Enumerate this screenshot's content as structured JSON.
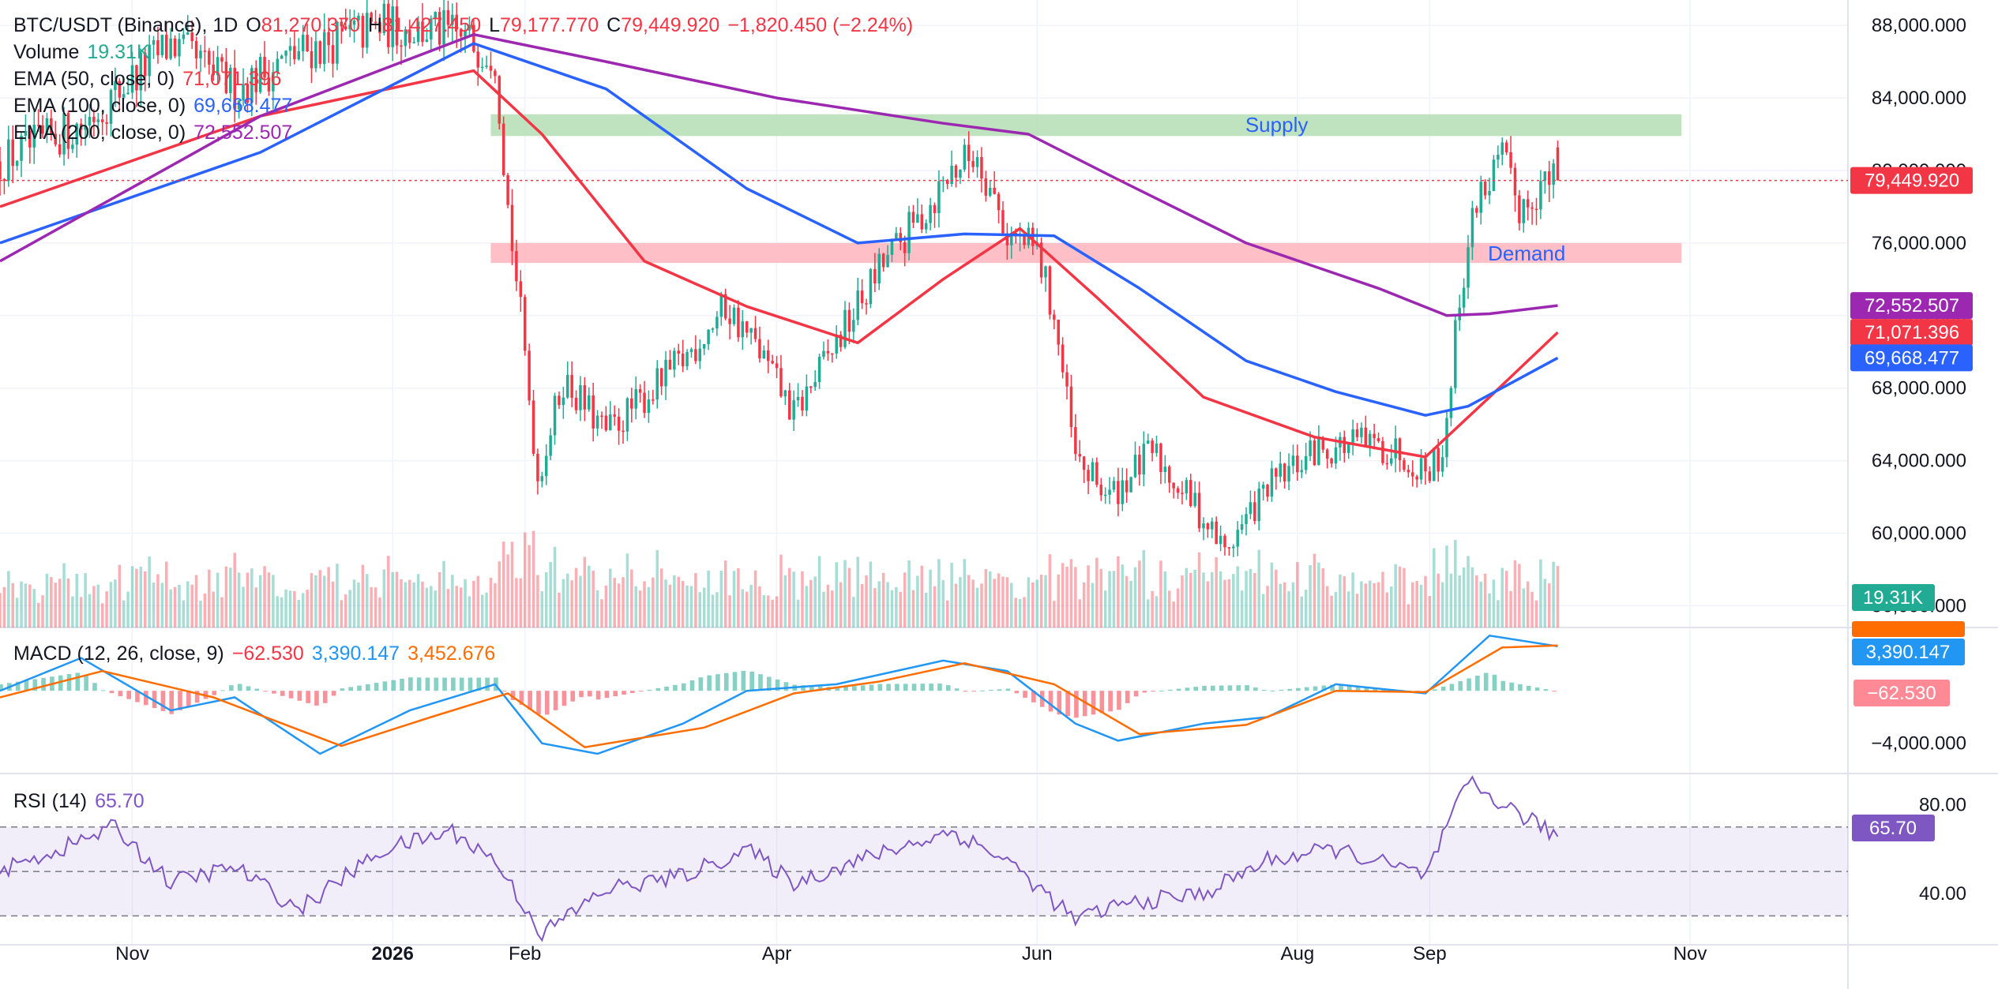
{
  "header": {
    "symbol": "BTC/USDT (Binance), 1D",
    "open_label": "O",
    "open": "81,270.370",
    "high_label": "H",
    "high": "81,427.450",
    "low_label": "L",
    "low": "79,177.770",
    "close_label": "C",
    "close": "79,449.920",
    "change": "−1,820.450 (−2.24%)"
  },
  "indicators": {
    "volume": {
      "label": "Volume",
      "value": "19.31K"
    },
    "ema50": {
      "label": "EMA (50, close, 0)",
      "value": "71,071.396"
    },
    "ema100": {
      "label": "EMA (100, close, 0)",
      "value": "69,668.477"
    },
    "ema200": {
      "label": "EMA (200, close, 0)",
      "value": "72,552.507"
    },
    "macd": {
      "label": "MACD (12, 26, close, 9)",
      "hist": "−62.530",
      "macd": "3,390.147",
      "signal": "3,452.676"
    },
    "rsi": {
      "label": "RSI (14)",
      "value": "65.70"
    }
  },
  "colors": {
    "up": "#22ab94",
    "down": "#f23645",
    "ema50": "#f23645",
    "ema100": "#2962ff",
    "ema200": "#9c27b0",
    "macd": "#2196f3",
    "signal": "#ff6d00",
    "rsi": "#7e57c2",
    "supply": "#b8e0b8",
    "demand": "#ffb8c0"
  },
  "chart_data": {
    "type": "candlestick",
    "title": "BTC/USDT (Binance), 1D",
    "x_ticks": [
      "Nov",
      "2026",
      "Feb",
      "Apr",
      "Jun",
      "Aug",
      "Sep",
      "Nov"
    ],
    "x_tick_months": [
      "2025-11",
      "2026-01",
      "2026-02",
      "2026-04",
      "2026-06",
      "2026-08",
      "2026-09",
      "2026-11"
    ],
    "y_ticks": [
      "88,000.000",
      "84,000.000",
      "80,000.000",
      "76,000.000",
      "72,000.000",
      "68,000.000",
      "64,000.000",
      "60,000.000",
      "56,000.000"
    ],
    "y_tick_values": [
      88000,
      84000,
      80000,
      76000,
      72000,
      68000,
      64000,
      60000,
      56000
    ],
    "price_range": [
      54800,
      89400
    ],
    "last_price": {
      "value": 79449.92,
      "label": "79,449.920"
    },
    "zones": [
      {
        "name": "Supply",
        "from": 81900,
        "to": 83100,
        "start": "2026-01-24",
        "end": "2026-10-30"
      },
      {
        "name": "Demand",
        "from": 74900,
        "to": 76000,
        "start": "2026-01-24",
        "end": "2026-10-30"
      }
    ],
    "price_path": [
      [
        "2025-10-01",
        80500
      ],
      [
        "2025-10-20",
        82500
      ],
      [
        "2025-11-10",
        87000
      ],
      [
        "2025-11-25",
        84500
      ],
      [
        "2025-12-10",
        86500
      ],
      [
        "2025-12-30",
        88000
      ],
      [
        "2026-01-15",
        87500
      ],
      [
        "2026-01-25",
        86500
      ],
      [
        "2026-01-28",
        78000
      ],
      [
        "2026-01-31",
        72000
      ],
      [
        "2026-02-04",
        63000
      ],
      [
        "2026-02-10",
        68500
      ],
      [
        "2026-02-20",
        65500
      ],
      [
        "2026-03-01",
        67500
      ],
      [
        "2026-03-10",
        69500
      ],
      [
        "2026-03-20",
        72500
      ],
      [
        "2026-03-28",
        70000
      ],
      [
        "2026-04-05",
        66500
      ],
      [
        "2026-04-15",
        70500
      ],
      [
        "2026-04-25",
        74500
      ],
      [
        "2026-05-05",
        77500
      ],
      [
        "2026-05-12",
        80000
      ],
      [
        "2026-05-18",
        81000
      ],
      [
        "2026-05-25",
        76500
      ],
      [
        "2026-06-01",
        75500
      ],
      [
        "2026-06-05",
        72000
      ],
      [
        "2026-06-10",
        64000
      ],
      [
        "2026-06-18",
        62000
      ],
      [
        "2026-06-28",
        64500
      ],
      [
        "2026-07-08",
        61500
      ],
      [
        "2026-07-15",
        59000
      ],
      [
        "2026-07-25",
        62500
      ],
      [
        "2026-08-05",
        64500
      ],
      [
        "2026-08-15",
        65000
      ],
      [
        "2026-08-25",
        64500
      ],
      [
        "2026-08-31",
        63500
      ],
      [
        "2026-09-04",
        64500
      ],
      [
        "2026-09-08",
        73000
      ],
      [
        "2026-09-12",
        78500
      ],
      [
        "2026-09-18",
        80500
      ],
      [
        "2026-09-22",
        78000
      ],
      [
        "2026-09-27",
        79200
      ],
      [
        "2026-10-01",
        79449.92
      ]
    ],
    "ema50_path": [
      [
        "2025-10-01",
        78000
      ],
      [
        "2025-12-01",
        83000
      ],
      [
        "2026-01-20",
        85500
      ],
      [
        "2026-02-05",
        82000
      ],
      [
        "2026-03-01",
        75000
      ],
      [
        "2026-03-25",
        72500
      ],
      [
        "2026-04-20",
        70500
      ],
      [
        "2026-05-10",
        74000
      ],
      [
        "2026-05-28",
        76800
      ],
      [
        "2026-06-15",
        73000
      ],
      [
        "2026-07-10",
        67500
      ],
      [
        "2026-08-05",
        65300
      ],
      [
        "2026-08-31",
        64200
      ],
      [
        "2026-09-15",
        67500
      ],
      [
        "2026-10-01",
        71071.396
      ]
    ],
    "ema100_path": [
      [
        "2025-10-01",
        76000
      ],
      [
        "2025-12-01",
        81000
      ],
      [
        "2026-01-20",
        87000
      ],
      [
        "2026-02-20",
        84500
      ],
      [
        "2026-03-25",
        79000
      ],
      [
        "2026-04-20",
        76000
      ],
      [
        "2026-05-15",
        76500
      ],
      [
        "2026-06-05",
        76400
      ],
      [
        "2026-06-25",
        73500
      ],
      [
        "2026-07-20",
        69500
      ],
      [
        "2026-08-10",
        67800
      ],
      [
        "2026-08-31",
        66500
      ],
      [
        "2026-09-10",
        67000
      ],
      [
        "2026-10-01",
        69668.477
      ]
    ],
    "ema200_path": [
      [
        "2025-10-01",
        75000
      ],
      [
        "2025-12-01",
        83000
      ],
      [
        "2026-01-20",
        87500
      ],
      [
        "2026-02-20",
        86000
      ],
      [
        "2026-04-01",
        84000
      ],
      [
        "2026-05-10",
        82600
      ],
      [
        "2026-05-30",
        82000
      ],
      [
        "2026-06-20",
        79500
      ],
      [
        "2026-07-20",
        76000
      ],
      [
        "2026-08-20",
        73500
      ],
      [
        "2026-09-05",
        72000
      ],
      [
        "2026-09-15",
        72100
      ],
      [
        "2026-10-01",
        72552.507
      ]
    ],
    "volume": {
      "last": "19.31K",
      "y_max": 60
    },
    "macd": {
      "y_ticks": [
        "−4,000.000"
      ],
      "y_tick_values": [
        -4000
      ],
      "range": [
        -6300,
        4700
      ],
      "last_macd": "3,390.147",
      "last_signal": "3,452.676",
      "last_hist": "−62.530",
      "macd_path": [
        [
          "2025-10-01",
          0
        ],
        [
          "2025-10-20",
          2500
        ],
        [
          "2025-11-10",
          -1500
        ],
        [
          "2025-11-25",
          -500
        ],
        [
          "2025-12-15",
          -4800
        ],
        [
          "2026-01-05",
          -1500
        ],
        [
          "2026-01-25",
          500
        ],
        [
          "2026-02-05",
          -4000
        ],
        [
          "2026-02-18",
          -4800
        ],
        [
          "2026-03-10",
          -2500
        ],
        [
          "2026-03-25",
          0
        ],
        [
          "2026-04-15",
          500
        ],
        [
          "2026-05-10",
          2300
        ],
        [
          "2026-05-25",
          1500
        ],
        [
          "2026-06-10",
          -2500
        ],
        [
          "2026-06-20",
          -3800
        ],
        [
          "2026-07-10",
          -2500
        ],
        [
          "2026-07-25",
          -2000
        ],
        [
          "2026-08-10",
          500
        ],
        [
          "2026-08-31",
          -200
        ],
        [
          "2026-09-15",
          4200
        ],
        [
          "2026-10-01",
          3390.147
        ]
      ],
      "signal_path": [
        [
          "2025-10-01",
          -500
        ],
        [
          "2025-10-25",
          1500
        ],
        [
          "2025-11-20",
          -500
        ],
        [
          "2025-12-20",
          -4200
        ],
        [
          "2026-01-10",
          -2000
        ],
        [
          "2026-01-28",
          -200
        ],
        [
          "2026-02-15",
          -4300
        ],
        [
          "2026-03-15",
          -2800
        ],
        [
          "2026-04-05",
          -200
        ],
        [
          "2026-04-25",
          700
        ],
        [
          "2026-05-15",
          2100
        ],
        [
          "2026-06-05",
          500
        ],
        [
          "2026-06-25",
          -3300
        ],
        [
          "2026-07-20",
          -2600
        ],
        [
          "2026-08-10",
          0
        ],
        [
          "2026-08-31",
          -100
        ],
        [
          "2026-09-18",
          3300
        ],
        [
          "2026-10-01",
          3452.676
        ]
      ]
    },
    "rsi": {
      "y_ticks": [
        "80.00",
        "40.00"
      ],
      "y_tick_values": [
        80,
        40
      ],
      "range": [
        17,
        93
      ],
      "bands": [
        70,
        30
      ],
      "middle": 50,
      "last": "65.70",
      "rsi_path": [
        [
          "2025-10-01",
          50
        ],
        [
          "2025-10-15",
          60
        ],
        [
          "2025-10-28",
          70
        ],
        [
          "2025-11-10",
          45
        ],
        [
          "2025-11-25",
          52
        ],
        [
          "2025-12-10",
          33
        ],
        [
          "2025-12-30",
          60
        ],
        [
          "2026-01-15",
          68
        ],
        [
          "2026-01-25",
          55
        ],
        [
          "2026-02-05",
          22
        ],
        [
          "2026-02-20",
          42
        ],
        [
          "2026-03-10",
          48
        ],
        [
          "2026-03-25",
          60
        ],
        [
          "2026-04-05",
          45
        ],
        [
          "2026-04-25",
          58
        ],
        [
          "2026-05-12",
          68
        ],
        [
          "2026-05-25",
          55
        ],
        [
          "2026-06-10",
          28
        ],
        [
          "2026-06-20",
          35
        ],
        [
          "2026-07-10",
          40
        ],
        [
          "2026-07-25",
          55
        ],
        [
          "2026-08-10",
          60
        ],
        [
          "2026-08-31",
          48
        ],
        [
          "2026-09-10",
          90
        ],
        [
          "2026-09-20",
          78
        ],
        [
          "2026-10-01",
          65.7
        ]
      ]
    }
  }
}
